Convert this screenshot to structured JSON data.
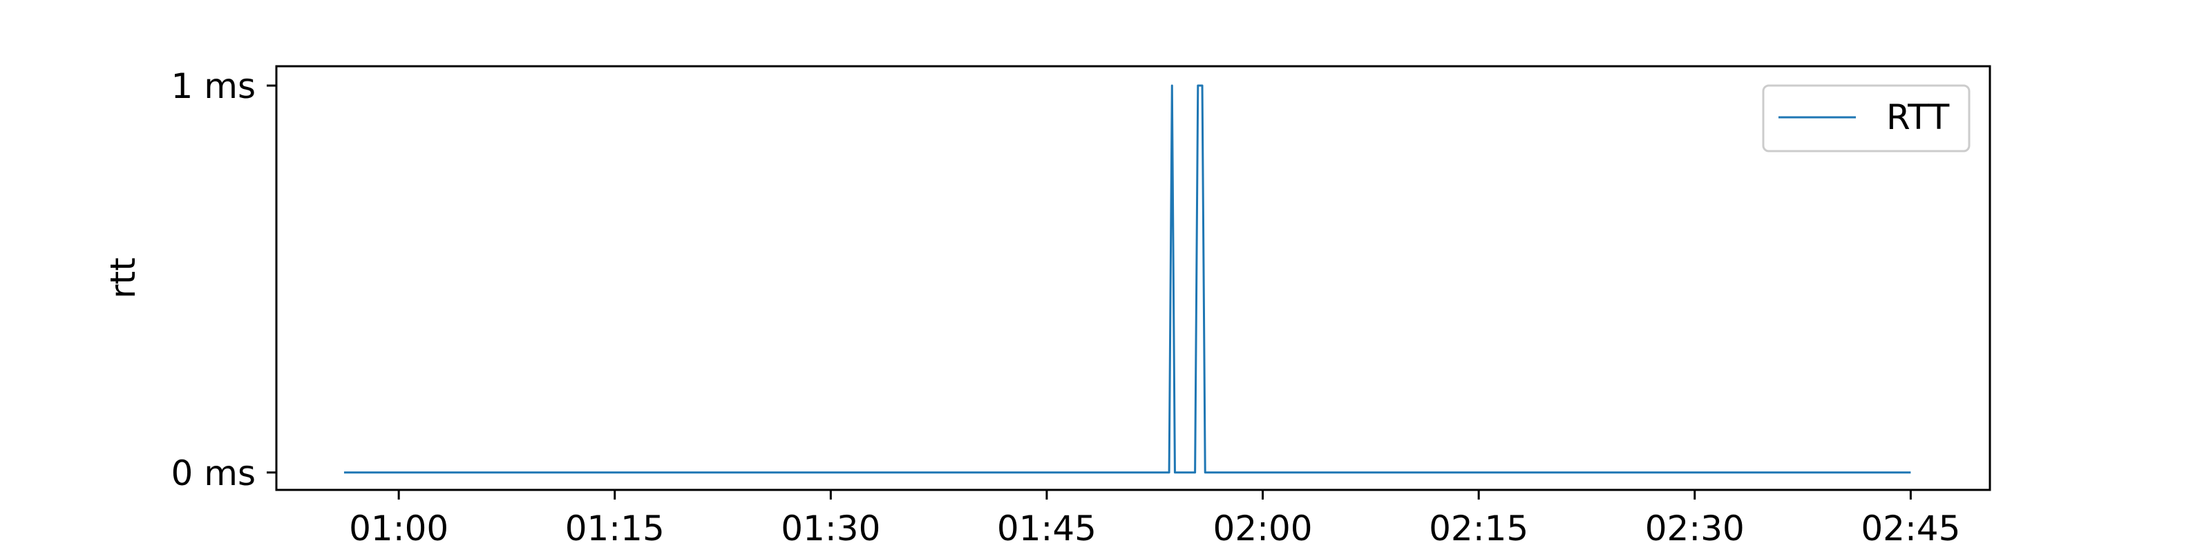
{
  "chart_data": {
    "type": "line",
    "title": "",
    "xlabel": "",
    "ylabel": "rtt",
    "x_tick_labels": [
      "01:00",
      "01:15",
      "01:30",
      "01:45",
      "02:00",
      "02:15",
      "02:30",
      "02:45"
    ],
    "x_tick_minutes": [
      60,
      75,
      90,
      105,
      120,
      135,
      150,
      165
    ],
    "xlim_minutes": [
      51.5,
      170.5
    ],
    "y_tick_labels": [
      "0 ms",
      "1 ms"
    ],
    "y_tick_values": [
      0,
      1
    ],
    "ylim": [
      -0.045,
      1.05
    ],
    "grid": false,
    "legend_position": "top-right",
    "series": [
      {
        "name": "RTT",
        "color": "#1f77b4",
        "x_minutes": [
          56.2,
          113.5,
          113.7,
          113.9,
          115.3,
          115.5,
          115.8,
          116.0,
          165.0
        ],
        "y": [
          0,
          0,
          1,
          0,
          0,
          1,
          1,
          0,
          0
        ]
      }
    ]
  }
}
